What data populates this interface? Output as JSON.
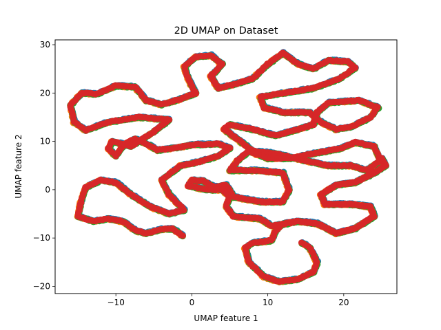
{
  "chart_data": {
    "type": "scatter",
    "title": "2D UMAP on Dataset",
    "xlabel": "UMAP feature 1",
    "ylabel": "UMAP feature 2",
    "xlim": [
      -18,
      27
    ],
    "ylim": [
      -21.5,
      31
    ],
    "xticks": [
      -10,
      0,
      10,
      20
    ],
    "xtick_labels": [
      "−10",
      "0",
      "10",
      "20"
    ],
    "yticks": [
      -20,
      -10,
      0,
      10,
      20,
      30
    ],
    "ytick_labels": [
      "−20",
      "−10",
      "0",
      "10",
      "20",
      "30"
    ],
    "grid": false,
    "legend": "none",
    "colors": [
      "#1f77b4",
      "#ff7f0e",
      "#2ca02c",
      "#d62728"
    ],
    "curve_xy": [
      [
        -1.2,
        -9.5
      ],
      [
        -2.5,
        -8.1
      ],
      [
        -4.0,
        -8.2
      ],
      [
        -6.0,
        -9.0
      ],
      [
        -7.4,
        -8.5
      ],
      [
        -9.0,
        -6.6
      ],
      [
        -11.0,
        -6.0
      ],
      [
        -13.0,
        -6.5
      ],
      [
        -15.0,
        -5.5
      ],
      [
        -14.7,
        -3.0
      ],
      [
        -14.0,
        0.5
      ],
      [
        -12.0,
        2.0
      ],
      [
        -10.0,
        1.5
      ],
      [
        -8.0,
        -1.0
      ],
      [
        -5.5,
        -3.5
      ],
      [
        -3.0,
        -5.0
      ],
      [
        -1.0,
        -4.2
      ],
      [
        -3.0,
        -1.0
      ],
      [
        -4.0,
        2.0
      ],
      [
        -1.5,
        5.0
      ],
      [
        1.0,
        5.8
      ],
      [
        3.5,
        7.0
      ],
      [
        5.0,
        8.6
      ],
      [
        3.5,
        9.5
      ],
      [
        0.0,
        9.3
      ],
      [
        -2.0,
        8.7
      ],
      [
        -4.5,
        8.2
      ],
      [
        -6.0,
        9.5
      ],
      [
        -7.5,
        10.5
      ],
      [
        -9.0,
        9.3
      ],
      [
        -10.0,
        7.0
      ],
      [
        -11.0,
        8.5
      ],
      [
        -10.5,
        10.0
      ],
      [
        -8.0,
        9.0
      ],
      [
        -5.0,
        12.0
      ],
      [
        -3.0,
        14.5
      ],
      [
        -7.0,
        15.0
      ],
      [
        -11.0,
        14.0
      ],
      [
        -14.0,
        12.3
      ],
      [
        -15.5,
        14.0
      ],
      [
        -16.0,
        17.5
      ],
      [
        -14.5,
        20.0
      ],
      [
        -12.5,
        19.8
      ],
      [
        -10.0,
        21.5
      ],
      [
        -7.5,
        21.3
      ],
      [
        -6.0,
        18.5
      ],
      [
        -4.0,
        17.6
      ],
      [
        -2.0,
        18.5
      ],
      [
        0.5,
        20.0
      ],
      [
        -0.5,
        23.0
      ],
      [
        -1.0,
        25.5
      ],
      [
        0.5,
        27.5
      ],
      [
        2.5,
        27.8
      ],
      [
        4.0,
        26.0
      ],
      [
        2.5,
        23.5
      ],
      [
        3.5,
        21.0
      ],
      [
        6.0,
        22.0
      ],
      [
        8.0,
        23.0
      ],
      [
        10.0,
        26.0
      ],
      [
        12.0,
        28.3
      ],
      [
        14.0,
        26.0
      ],
      [
        16.0,
        25.0
      ],
      [
        18.0,
        26.8
      ],
      [
        20.5,
        26.5
      ],
      [
        21.5,
        25.2
      ],
      [
        19.5,
        23.0
      ],
      [
        16.0,
        21.0
      ],
      [
        12.0,
        20.0
      ],
      [
        9.0,
        19.2
      ],
      [
        9.5,
        17.0
      ],
      [
        12.0,
        16.0
      ],
      [
        15.5,
        16.0
      ],
      [
        17.0,
        14.0
      ],
      [
        19.0,
        12.5
      ],
      [
        21.0,
        13.0
      ],
      [
        23.5,
        15.0
      ],
      [
        24.5,
        17.0
      ],
      [
        22.0,
        18.5
      ],
      [
        18.0,
        18.0
      ],
      [
        16.5,
        16.0
      ],
      [
        16.0,
        13.5
      ],
      [
        14.0,
        12.5
      ],
      [
        11.0,
        11.2
      ],
      [
        8.0,
        12.5
      ],
      [
        5.0,
        13.5
      ],
      [
        4.2,
        12.5
      ],
      [
        6.0,
        10.5
      ],
      [
        8.0,
        8.0
      ],
      [
        11.0,
        7.5
      ],
      [
        15.0,
        6.0
      ],
      [
        18.0,
        5.0
      ],
      [
        21.0,
        5.0
      ],
      [
        23.0,
        4.0
      ],
      [
        24.8,
        6.0
      ],
      [
        24.0,
        9.0
      ],
      [
        21.5,
        9.8
      ],
      [
        19.5,
        8.5
      ],
      [
        16.0,
        7.5
      ],
      [
        13.0,
        6.5
      ],
      [
        10.0,
        6.5
      ],
      [
        7.5,
        8.0
      ],
      [
        6.0,
        6.0
      ],
      [
        5.0,
        4.0
      ],
      [
        8.5,
        4.0
      ],
      [
        12.0,
        3.5
      ],
      [
        12.8,
        0.0
      ],
      [
        12.0,
        -2.5
      ],
      [
        9.0,
        -2.5
      ],
      [
        5.5,
        -1.5
      ],
      [
        4.5,
        1.0
      ],
      [
        3.0,
        0.5
      ],
      [
        1.5,
        1.8
      ],
      [
        0.0,
        2.0
      ],
      [
        -0.5,
        0.8
      ],
      [
        2.0,
        0.0
      ],
      [
        4.0,
        0.0
      ],
      [
        5.0,
        -1.5
      ],
      [
        4.5,
        -3.5
      ],
      [
        5.5,
        -5.5
      ],
      [
        9.0,
        -6.0
      ],
      [
        10.5,
        -7.5
      ],
      [
        12.5,
        -7.0
      ],
      [
        14.0,
        -6.5
      ],
      [
        16.5,
        -7.0
      ],
      [
        19.0,
        -9.0
      ],
      [
        21.5,
        -8.0
      ],
      [
        24.0,
        -5.5
      ],
      [
        23.5,
        -3.5
      ],
      [
        21.0,
        -3.0
      ],
      [
        17.5,
        -3.0
      ],
      [
        17.0,
        -1.0
      ],
      [
        19.0,
        1.0
      ],
      [
        21.5,
        1.5
      ],
      [
        24.0,
        3.5
      ],
      [
        25.5,
        5.0
      ],
      [
        25.0,
        6.5
      ],
      [
        25.5,
        5.0
      ],
      [
        24.0,
        3.5
      ],
      [
        21.5,
        1.5
      ],
      [
        19.0,
        1.0
      ],
      [
        17.0,
        -1.0
      ],
      [
        17.5,
        -3.0
      ],
      [
        21.0,
        -3.0
      ],
      [
        23.5,
        -3.5
      ],
      [
        24.0,
        -5.5
      ],
      [
        21.5,
        -8.0
      ],
      [
        19.0,
        -9.0
      ],
      [
        16.5,
        -7.0
      ],
      [
        14.0,
        -6.5
      ],
      [
        12.0,
        -7.0
      ],
      [
        11.0,
        -8.5
      ],
      [
        10.5,
        -10.5
      ],
      [
        8.0,
        -11.0
      ],
      [
        7.0,
        -12.0
      ],
      [
        7.5,
        -15.0
      ],
      [
        9.5,
        -18.0
      ],
      [
        11.5,
        -19.0
      ],
      [
        14.0,
        -18.5
      ],
      [
        16.0,
        -17.0
      ],
      [
        16.5,
        -15.0
      ],
      [
        15.5,
        -12.0
      ],
      [
        14.5,
        -11.0
      ]
    ]
  }
}
